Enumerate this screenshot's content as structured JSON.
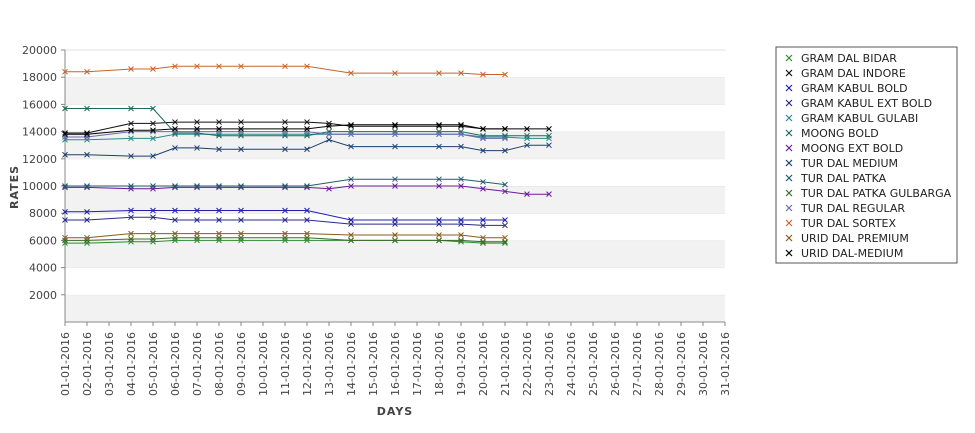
{
  "chart_data": {
    "type": "line",
    "title": "",
    "xlabel": "DAYS",
    "ylabel": "RATES",
    "ylim": [
      0,
      20000
    ],
    "y_ticks": [
      2000,
      4000,
      6000,
      8000,
      10000,
      12000,
      14000,
      16000,
      18000,
      20000
    ],
    "grid": "alternating horizontal bands",
    "legend_position": "right",
    "x": [
      "01-01-2016",
      "02-01-2016",
      "03-01-2016",
      "04-01-2016",
      "05-01-2016",
      "06-01-2016",
      "07-01-2016",
      "08-01-2016",
      "09-01-2016",
      "10-01-2016",
      "11-01-2016",
      "12-01-2016",
      "13-01-2016",
      "14-01-2016",
      "15-01-2016",
      "16-01-2016",
      "17-01-2016",
      "18-01-2016",
      "19-01-2016",
      "20-01-2016",
      "21-01-2016",
      "22-01-2016",
      "23-01-2016",
      "24-01-2016",
      "25-01-2016",
      "26-01-2016",
      "27-01-2016",
      "28-01-2016",
      "29-01-2016",
      "30-01-2016",
      "31-01-2016"
    ],
    "series": [
      {
        "name": "GRAM DAL BIDAR",
        "color": "#2e8b2e",
        "values": [
          5800,
          5800,
          null,
          5900,
          5900,
          6000,
          6000,
          6000,
          6000,
          null,
          6000,
          6000,
          null,
          6000,
          null,
          6000,
          null,
          6000,
          5900,
          5800,
          5800,
          null,
          null,
          null,
          null,
          null,
          null,
          null,
          null,
          null,
          null
        ]
      },
      {
        "name": "GRAM DAL INDORE",
        "color": "#111111",
        "values": [
          13900,
          13900,
          null,
          14600,
          14600,
          14700,
          14700,
          14700,
          14700,
          null,
          14700,
          14700,
          14600,
          14400,
          null,
          14400,
          null,
          14400,
          14400,
          14200,
          14200,
          null,
          null,
          null,
          null,
          null,
          null,
          null,
          null,
          null,
          null
        ]
      },
      {
        "name": "GRAM KABUL BOLD",
        "color": "#1f1fb0",
        "values": [
          8100,
          8100,
          null,
          8200,
          8200,
          8200,
          8200,
          8200,
          8200,
          null,
          8200,
          8200,
          null,
          7500,
          null,
          7500,
          null,
          7500,
          7500,
          7500,
          7500,
          null,
          null,
          null,
          null,
          null,
          null,
          null,
          null,
          null,
          null
        ]
      },
      {
        "name": "GRAM KABUL EXT BOLD",
        "color": "#2a2a8a",
        "values": [
          7500,
          7500,
          null,
          7700,
          7700,
          7500,
          7500,
          7500,
          7500,
          null,
          7500,
          7500,
          null,
          7200,
          null,
          7200,
          null,
          7200,
          7200,
          7100,
          7100,
          null,
          null,
          null,
          null,
          null,
          null,
          null,
          null,
          null,
          null
        ]
      },
      {
        "name": "GRAM KABUL GULABI",
        "color": "#2a8a8a",
        "values": [
          13400,
          13400,
          null,
          13500,
          13500,
          13800,
          13800,
          13800,
          13800,
          null,
          13800,
          13800,
          13800,
          13800,
          null,
          13800,
          null,
          13800,
          13800,
          13600,
          13600,
          13500,
          13500,
          null,
          null,
          null,
          null,
          null,
          null,
          null,
          null
        ]
      },
      {
        "name": "MOONG BOLD",
        "color": "#1b6b5a",
        "values": [
          15700,
          15700,
          null,
          15700,
          15700,
          13900,
          13900,
          13700,
          13700,
          null,
          13700,
          13700,
          14000,
          14000,
          null,
          14000,
          null,
          14000,
          14000,
          13700,
          13700,
          13700,
          13700,
          null,
          null,
          null,
          null,
          null,
          null,
          null,
          null
        ]
      },
      {
        "name": "MOONG EXT BOLD",
        "color": "#6a1b9a",
        "values": [
          9900,
          9900,
          null,
          9800,
          9800,
          9900,
          9900,
          9900,
          9900,
          null,
          9900,
          9900,
          9800,
          10000,
          null,
          10000,
          null,
          10000,
          10000,
          9800,
          9600,
          9400,
          9400,
          null,
          null,
          null,
          null,
          null,
          null,
          null,
          null
        ]
      },
      {
        "name": "TUR DAL MEDIUM",
        "color": "#1c3f6e",
        "values": [
          12300,
          12300,
          null,
          12200,
          12200,
          12800,
          12800,
          12700,
          12700,
          null,
          12700,
          12700,
          13400,
          12900,
          null,
          12900,
          null,
          12900,
          12900,
          12600,
          12600,
          13000,
          13000,
          null,
          null,
          null,
          null,
          null,
          null,
          null,
          null
        ]
      },
      {
        "name": "TUR DAL PATKA",
        "color": "#1b5e6b",
        "values": [
          10000,
          10000,
          null,
          10000,
          10000,
          10000,
          10000,
          10000,
          10000,
          null,
          10000,
          10000,
          null,
          10500,
          null,
          10500,
          null,
          10500,
          10500,
          10300,
          10100,
          null,
          null,
          null,
          null,
          null,
          null,
          null,
          null,
          null,
          null
        ]
      },
      {
        "name": "TUR DAL PATKA GULBARGA",
        "color": "#3a6b2a",
        "values": [
          6000,
          6000,
          null,
          6100,
          6100,
          6200,
          6200,
          6200,
          6200,
          null,
          6200,
          6200,
          null,
          6000,
          null,
          6000,
          null,
          6000,
          6000,
          5900,
          5900,
          null,
          null,
          null,
          null,
          null,
          null,
          null,
          null,
          null,
          null
        ]
      },
      {
        "name": "TUR DAL REGULAR",
        "color": "#6a6ab0",
        "values": [
          13600,
          13600,
          null,
          14000,
          14000,
          14000,
          14000,
          14000,
          14000,
          null,
          14000,
          14000,
          13800,
          13800,
          null,
          13800,
          null,
          13800,
          13800,
          13500,
          13500,
          null,
          null,
          null,
          null,
          null,
          null,
          null,
          null,
          null,
          null
        ]
      },
      {
        "name": "TUR DAL SORTEX",
        "color": "#c8642a",
        "values": [
          18400,
          18400,
          null,
          18600,
          18600,
          18800,
          18800,
          18800,
          18800,
          null,
          18800,
          18800,
          null,
          18300,
          null,
          18300,
          null,
          18300,
          18300,
          18200,
          18200,
          null,
          null,
          null,
          null,
          null,
          null,
          null,
          null,
          null,
          null
        ]
      },
      {
        "name": "URID DAL PREMIUM",
        "color": "#8a5a1a",
        "values": [
          6200,
          6200,
          null,
          6500,
          6500,
          6500,
          6500,
          6500,
          6500,
          null,
          6500,
          6500,
          null,
          6400,
          null,
          6400,
          null,
          6400,
          6400,
          6200,
          6200,
          null,
          null,
          null,
          null,
          null,
          null,
          null,
          null,
          null,
          null
        ]
      },
      {
        "name": "URID DAL-MEDIUM",
        "color": "#000000",
        "values": [
          13800,
          13800,
          null,
          14100,
          14100,
          14200,
          14200,
          14200,
          14200,
          null,
          14200,
          14200,
          14400,
          14500,
          null,
          14500,
          null,
          14500,
          14500,
          14200,
          14200,
          14200,
          14200,
          null,
          null,
          null,
          null,
          null,
          null,
          null,
          null
        ]
      }
    ],
    "extra_segments": [
      {
        "series": "GRAM KABUL GULABI",
        "x": [
          "12-01-2016",
          "13-01-2016",
          "14-01-2016",
          "15-01-2016",
          "16-01-2016",
          "17-01-2016",
          "18-01-2016",
          "19-01-2016",
          "20-01-2016",
          "21-01-2016",
          "22-01-2016",
          "23-01-2016"
        ]
      }
    ]
  }
}
